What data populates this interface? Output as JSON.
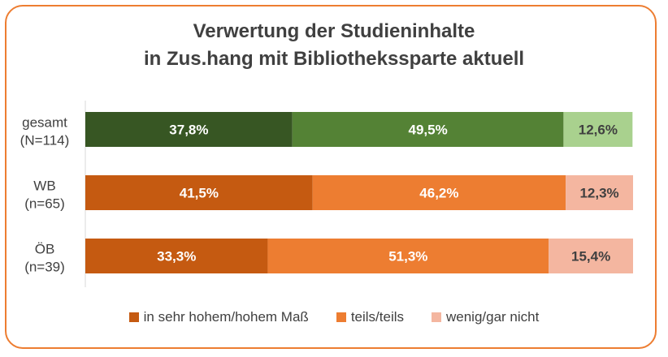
{
  "chart_data": {
    "type": "bar",
    "orientation": "horizontal",
    "stacked": "percent",
    "title": [
      "Verwertung  der Studieninhalte",
      "in Zus.hang mit Bibliothekssparte aktuell"
    ],
    "categories": [
      [
        "gesamt",
        "(N=114)"
      ],
      [
        "WB",
        "(n=65)"
      ],
      [
        "ÖB",
        "(n=39)"
      ]
    ],
    "series": [
      {
        "name": "in sehr hohem/hohem Maß",
        "values": [
          37.8,
          41.5,
          33.3
        ],
        "labels": [
          "37,8%",
          "41,5%",
          "33,3%"
        ],
        "colors": [
          "#375623",
          "#c55a11",
          "#c55a11"
        ],
        "label_color": "#ffffff"
      },
      {
        "name": "teils/teils",
        "values": [
          49.5,
          46.2,
          51.3
        ],
        "labels": [
          "49,5%",
          "46,2%",
          "51,3%"
        ],
        "colors": [
          "#548235",
          "#ed7d31",
          "#ed7d31"
        ],
        "label_color": "#ffffff"
      },
      {
        "name": "wenig/gar nicht",
        "values": [
          12.6,
          12.3,
          15.4
        ],
        "labels": [
          "12,6%",
          "12,3%",
          "15,4%"
        ],
        "colors": [
          "#a9d18e",
          "#f4b6a0",
          "#f4b6a0"
        ],
        "label_color": "#404040"
      }
    ],
    "legend_colors": [
      "#c55a11",
      "#ed7d31",
      "#f4b6a0"
    ],
    "legend_position": "bottom",
    "xlim": [
      0,
      100
    ]
  }
}
